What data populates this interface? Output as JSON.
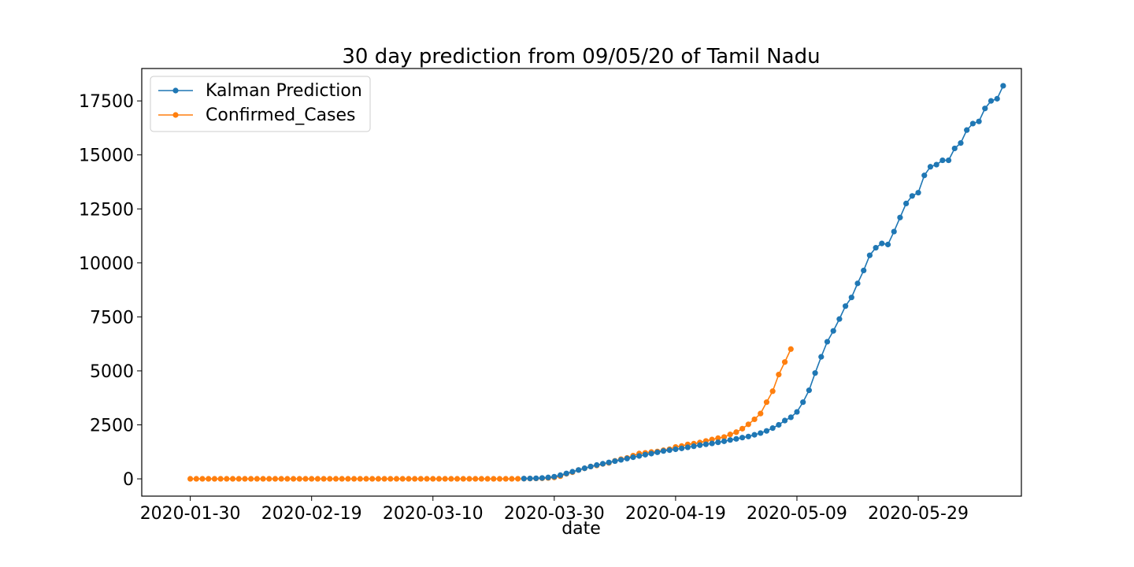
{
  "chart_data": {
    "type": "line",
    "title": "30 day prediction from 09/05/20 of Tamil Nadu",
    "xlabel": "date",
    "ylabel": "",
    "x_type": "date",
    "x_range": [
      "2020-01-22",
      "2020-06-15"
    ],
    "ylim": [
      -800,
      19000
    ],
    "grid": false,
    "legend_position": "top-left",
    "x_ticks": [
      "2020-01-30",
      "2020-02-19",
      "2020-03-10",
      "2020-03-30",
      "2020-04-19",
      "2020-05-09",
      "2020-05-29"
    ],
    "y_ticks": [
      0,
      2500,
      5000,
      7500,
      10000,
      12500,
      15000,
      17500
    ],
    "series": [
      {
        "name": "Kalman Prediction",
        "color": "#1f77b4",
        "marker": "circle",
        "start_date": "2020-03-25",
        "values": [
          12,
          18,
          26,
          40,
          65,
          100,
          170,
          250,
          330,
          410,
          490,
          570,
          640,
          700,
          760,
          820,
          880,
          940,
          1000,
          1060,
          1120,
          1170,
          1230,
          1290,
          1330,
          1370,
          1410,
          1460,
          1510,
          1560,
          1600,
          1640,
          1690,
          1740,
          1800,
          1850,
          1910,
          1960,
          2040,
          2120,
          2220,
          2350,
          2500,
          2700,
          2850,
          3100,
          3550,
          4100,
          4900,
          5650,
          6350,
          6850,
          7400,
          8000,
          8400,
          9050,
          9650,
          10350,
          10700,
          10900,
          10850,
          11450,
          12100,
          12750,
          13100,
          13250,
          14050,
          14450,
          14550,
          14750,
          14750,
          15300,
          15550,
          16150,
          16450,
          16550,
          17150,
          17500,
          17600,
          18200
        ]
      },
      {
        "name": "Confirmed_Cases",
        "color": "#ff7f0e",
        "marker": "circle",
        "start_date": "2020-01-30",
        "values": [
          1,
          1,
          1,
          1,
          1,
          1,
          1,
          1,
          1,
          1,
          1,
          1,
          1,
          1,
          1,
          1,
          1,
          1,
          1,
          1,
          1,
          1,
          1,
          1,
          1,
          1,
          1,
          1,
          1,
          1,
          1,
          1,
          1,
          1,
          1,
          1,
          1,
          1,
          1,
          1,
          1,
          1,
          1,
          1,
          1,
          1,
          1,
          1,
          1,
          1,
          1,
          1,
          1,
          1,
          3,
          7,
          12,
          18,
          26,
          40,
          67,
          124,
          234,
          309,
          411,
          485,
          571,
          621,
          690,
          738,
          834,
          911,
          969,
          1075,
          1173,
          1204,
          1242,
          1267,
          1323,
          1372,
          1477,
          1520,
          1596,
          1629,
          1683,
          1755,
          1821,
          1885,
          1937,
          2058,
          2162,
          2323,
          2526,
          2757,
          3023,
          3550,
          4058,
          4829,
          5409,
          6009
        ]
      }
    ]
  }
}
